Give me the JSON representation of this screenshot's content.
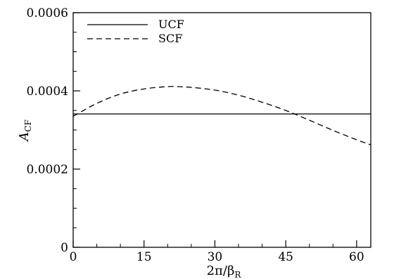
{
  "chart_data": {
    "type": "line",
    "title": "",
    "xlabel": "2π/β",
    "xlabel_sub": "R",
    "ylabel": "A",
    "ylabel_sub": "CF",
    "xlim": [
      0,
      63
    ],
    "ylim": [
      0,
      0.0006
    ],
    "x_ticks": [
      0,
      15,
      30,
      45,
      60
    ],
    "x_tick_labels": [
      "0",
      "15",
      "30",
      "45",
      "60"
    ],
    "y_ticks": [
      0,
      0.0002,
      0.0004,
      0.0006
    ],
    "y_tick_labels": [
      "0",
      "0.0002",
      "0.0004",
      "0.0006"
    ],
    "x_minor_step": 5,
    "y_minor_step": 5e-05,
    "grid": false,
    "legend_position": "top-left",
    "series": [
      {
        "name": "UCF",
        "style": "solid",
        "x": [
          0,
          63
        ],
        "y": [
          0.000341,
          0.000341
        ]
      },
      {
        "name": "SCF",
        "style": "dashed",
        "x": [
          0,
          5,
          10,
          15,
          20,
          22,
          25,
          30,
          35,
          40,
          45,
          50,
          55,
          60,
          63
        ],
        "y": [
          0.000335,
          0.000368,
          0.000392,
          0.000405,
          0.000411,
          0.000411,
          0.000409,
          0.000402,
          0.000389,
          0.000371,
          0.00035,
          0.000325,
          0.000299,
          0.000275,
          0.000262
        ]
      }
    ]
  }
}
